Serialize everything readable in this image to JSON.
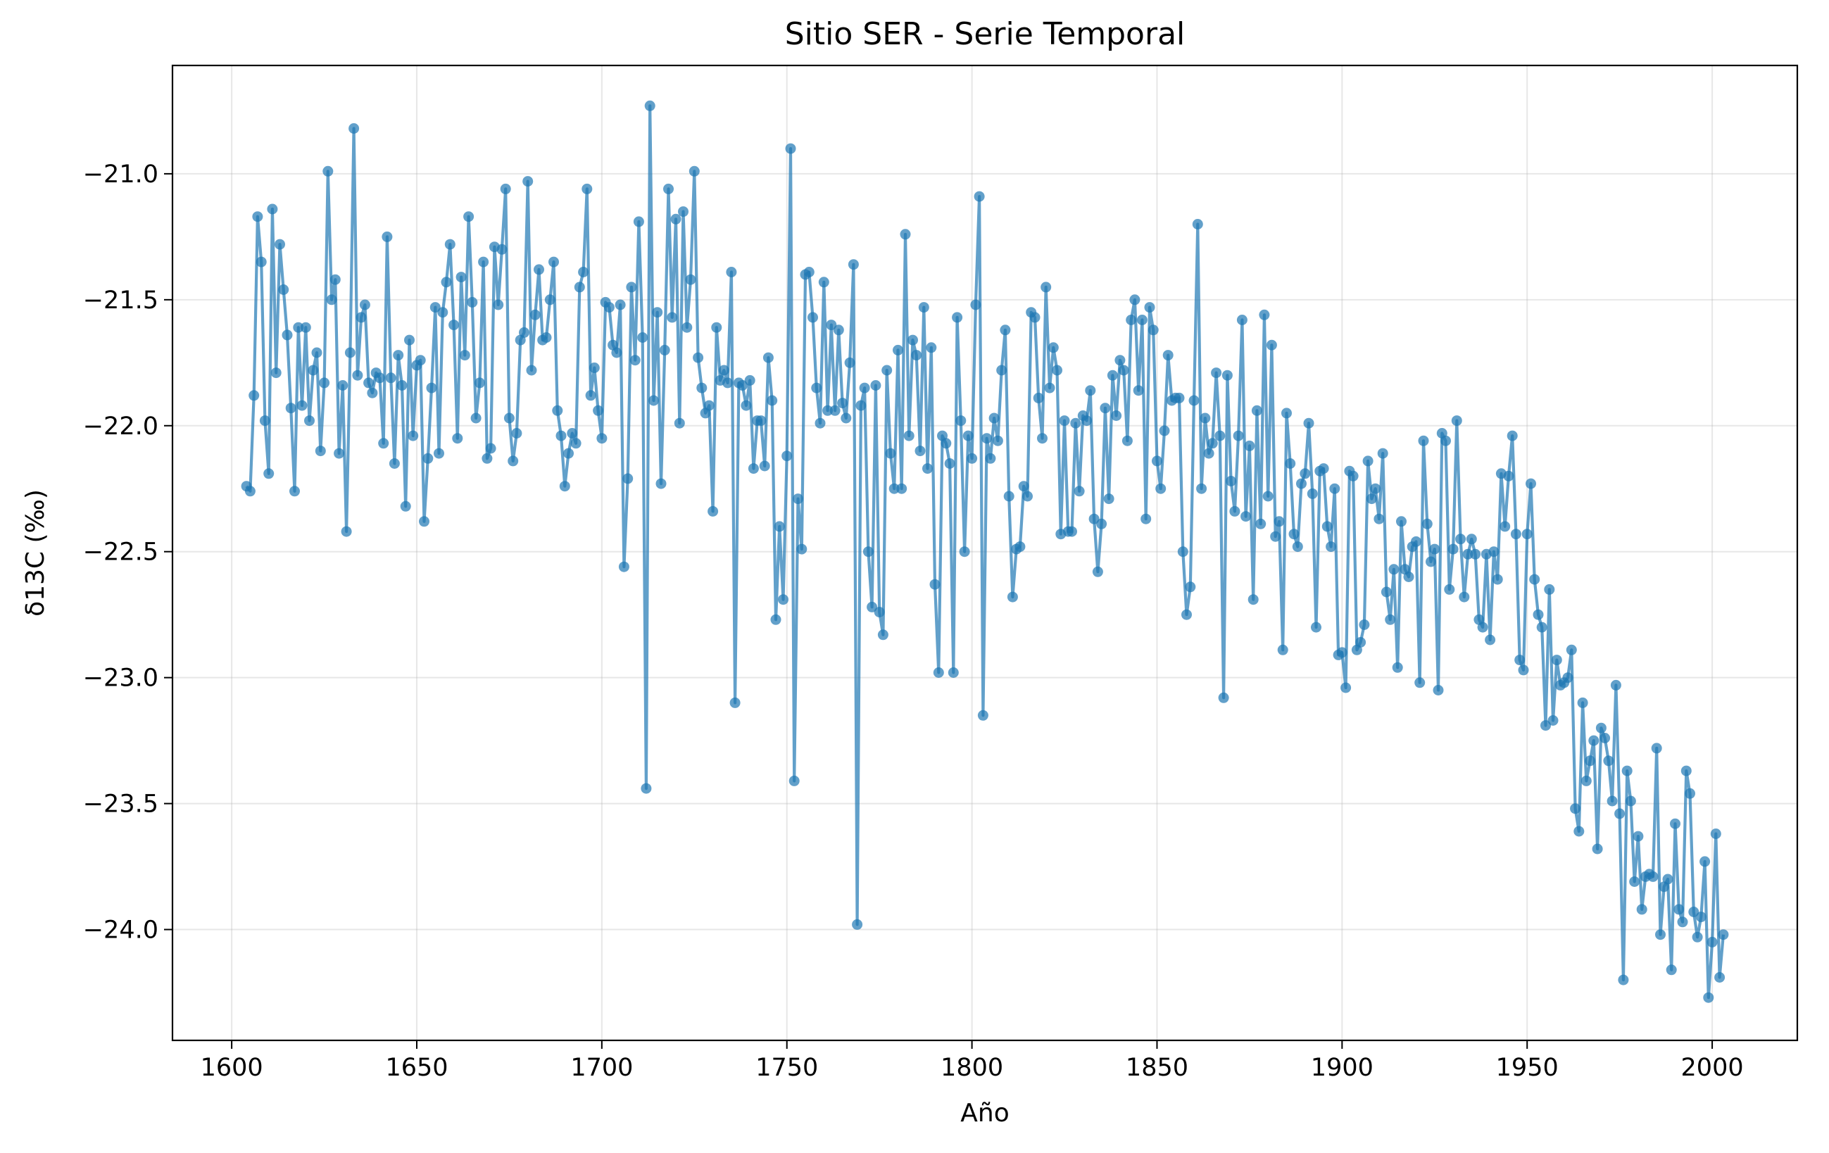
{
  "chart_data": {
    "type": "line",
    "title": "Sitio SER - Serie Temporal",
    "xlabel": "Año",
    "ylabel": "δ13C (‰)",
    "xlim": [
      1584,
      2023
    ],
    "ylim": [
      -24.44,
      -20.57
    ],
    "xticks": [
      1600,
      1650,
      1700,
      1750,
      1800,
      1850,
      1900,
      1950,
      2000
    ],
    "yticks": [
      -21.0,
      -21.5,
      -22.0,
      -22.5,
      -23.0,
      -23.5,
      -24.0
    ],
    "xtick_labels": [
      "1600",
      "1650",
      "1700",
      "1750",
      "1800",
      "1850",
      "1900",
      "1950",
      "2000"
    ],
    "ytick_labels": [
      "−21.0",
      "−21.5",
      "−22.0",
      "−22.5",
      "−23.0",
      "−23.5",
      "−24.0"
    ],
    "grid": true,
    "marker": "circle",
    "series_color": "#1f77b4",
    "series": [
      {
        "x_start": 1604,
        "x_step": 1,
        "values": [
          -22.24,
          -22.26,
          -21.88,
          -21.17,
          -21.35,
          -21.98,
          -22.19,
          -21.14,
          -21.79,
          -21.28,
          -21.46,
          -21.64,
          -21.93,
          -22.26,
          -21.61,
          -21.92,
          -21.61,
          -21.98,
          -21.78,
          -21.71,
          -22.1,
          -21.83,
          -20.99,
          -21.5,
          -21.42,
          -22.11,
          -21.84,
          -22.42,
          -21.71,
          -20.82,
          -21.8,
          -21.57,
          -21.52,
          -21.83,
          -21.87,
          -21.79,
          -21.81,
          -22.07,
          -21.25,
          -21.81,
          -22.15,
          -21.72,
          -21.84,
          -22.32,
          -21.66,
          -22.04,
          -21.76,
          -21.74,
          -22.38,
          -22.13,
          -21.85,
          -21.53,
          -22.11,
          -21.55,
          -21.43,
          -21.28,
          -21.6,
          -22.05,
          -21.41,
          -21.72,
          -21.17,
          -21.51,
          -21.97,
          -21.83,
          -21.35,
          -22.13,
          -22.09,
          -21.29,
          -21.52,
          -21.3,
          -21.06,
          -21.97,
          -22.14,
          -22.03,
          -21.66,
          -21.63,
          -21.03,
          -21.78,
          -21.56,
          -21.38,
          -21.66,
          -21.65,
          -21.5,
          -21.35,
          -21.94,
          -22.04,
          -22.24,
          -22.11,
          -22.03,
          -22.07,
          -21.45,
          -21.39,
          -21.06,
          -21.88,
          -21.77,
          -21.94,
          -22.05,
          -21.51,
          -21.53,
          -21.68,
          -21.71,
          -21.52,
          -22.56,
          -22.21,
          -21.45,
          -21.74,
          -21.19,
          -21.65,
          -23.44,
          -20.73,
          -21.9,
          -21.55,
          -22.23,
          -21.7,
          -21.06,
          -21.57,
          -21.18,
          -21.99,
          -21.15,
          -21.61,
          -21.42,
          -20.99,
          -21.73,
          -21.85,
          -21.95,
          -21.92,
          -22.34,
          -21.61,
          -21.82,
          -21.78,
          -21.83,
          -21.39,
          -23.1,
          -21.83,
          -21.84,
          -21.92,
          -21.82,
          -22.17,
          -21.98,
          -21.98,
          -22.16,
          -21.73,
          -21.9,
          -22.77,
          -22.4,
          -22.69,
          -22.12,
          -20.9,
          -23.41,
          -22.29,
          -22.49,
          -21.4,
          -21.39,
          -21.57,
          -21.85,
          -21.99,
          -21.43,
          -21.94,
          -21.6,
          -21.94,
          -21.62,
          -21.91,
          -21.97,
          -21.75,
          -21.36,
          -23.98,
          -21.92,
          -21.85,
          -22.5,
          -22.72,
          -21.84,
          -22.74,
          -22.83,
          -21.78,
          -22.11,
          -22.25,
          -21.7,
          -22.25,
          -21.24,
          -22.04,
          -21.66,
          -21.72,
          -22.1,
          -21.53,
          -22.17,
          -21.69,
          -22.63,
          -22.98,
          -22.04,
          -22.07,
          -22.15,
          -22.98,
          -21.57,
          -21.98,
          -22.5,
          -22.04,
          -22.13,
          -21.52,
          -21.09,
          -23.15,
          -22.05,
          -22.13,
          -21.97,
          -22.06,
          -21.78,
          -21.62,
          -22.28,
          -22.68,
          -22.49,
          -22.48,
          -22.24,
          -22.28,
          -21.55,
          -21.57,
          -21.89,
          -22.05,
          -21.45,
          -21.85,
          -21.69,
          -21.78,
          -22.43,
          -21.98,
          -22.42,
          -22.42,
          -21.99,
          -22.26,
          -21.96,
          -21.98,
          -21.86,
          -22.37,
          -22.58,
          -22.39,
          -21.93,
          -22.29,
          -21.8,
          -21.96,
          -21.74,
          -21.78,
          -22.06,
          -21.58,
          -21.5,
          -21.86,
          -21.58,
          -22.37,
          -21.53,
          -21.62,
          -22.14,
          -22.25,
          -22.02,
          -21.72,
          -21.9,
          -21.89,
          -21.89,
          -22.5,
          -22.75,
          -22.64,
          -21.9,
          -21.2,
          -22.25,
          -21.97,
          -22.11,
          -22.07,
          -21.79,
          -22.04,
          -23.08,
          -21.8,
          -22.22,
          -22.34,
          -22.04,
          -21.58,
          -22.36,
          -22.08,
          -22.69,
          -21.94,
          -22.39,
          -21.56,
          -22.28,
          -21.68,
          -22.44,
          -22.38,
          -22.89,
          -21.95,
          -22.15,
          -22.43,
          -22.48,
          -22.23,
          -22.19,
          -21.99,
          -22.27,
          -22.8,
          -22.18,
          -22.17,
          -22.4,
          -22.48,
          -22.25,
          -22.91,
          -22.9,
          -23.04,
          -22.18,
          -22.2,
          -22.89,
          -22.86,
          -22.79,
          -22.14,
          -22.29,
          -22.25,
          -22.37,
          -22.11,
          -22.66,
          -22.77,
          -22.57,
          -22.96,
          -22.38,
          -22.57,
          -22.6,
          -22.48,
          -22.46,
          -23.02,
          -22.06,
          -22.39,
          -22.54,
          -22.49,
          -23.05,
          -22.03,
          -22.06,
          -22.65,
          -22.49,
          -21.98,
          -22.45,
          -22.68,
          -22.51,
          -22.45,
          -22.51,
          -22.77,
          -22.8,
          -22.51,
          -22.85,
          -22.5,
          -22.61,
          -22.19,
          -22.4,
          -22.2,
          -22.04,
          -22.43,
          -22.93,
          -22.97,
          -22.43,
          -22.23,
          -22.61,
          -22.75,
          -22.8,
          -23.19,
          -22.65,
          -23.17,
          -22.93,
          -23.03,
          -23.02,
          -23.0,
          -22.89,
          -23.52,
          -23.61,
          -23.1,
          -23.41,
          -23.33,
          -23.25,
          -23.68,
          -23.2,
          -23.24,
          -23.33,
          -23.49,
          -23.03,
          -23.54,
          -24.2,
          -23.37,
          -23.49,
          -23.81,
          -23.63,
          -23.92,
          -23.79,
          -23.78,
          -23.79,
          -23.28,
          -24.02,
          -23.83,
          -23.8,
          -24.16,
          -23.58,
          -23.92,
          -23.97,
          -23.37,
          -23.46,
          -23.93,
          -24.03,
          -23.95,
          -23.73,
          -24.27,
          -24.05,
          -23.62,
          -24.19,
          -24.02
        ]
      }
    ]
  }
}
